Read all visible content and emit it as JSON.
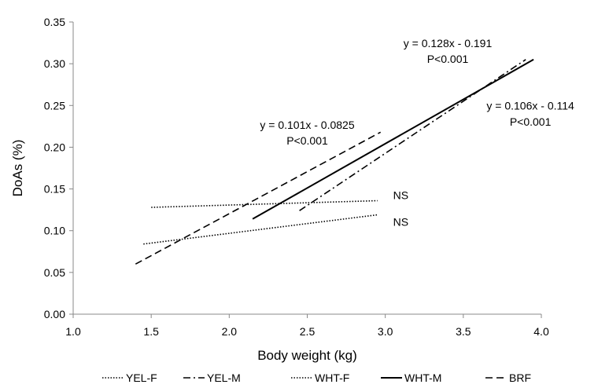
{
  "chart_data": {
    "type": "line",
    "xlabel": "Body weight (kg)",
    "ylabel": "DoAs (%)",
    "xlim": [
      1.0,
      4.0
    ],
    "ylim": [
      0.0,
      0.35
    ],
    "x_ticks": [
      "1.0",
      "1.5",
      "2.0",
      "2.5",
      "3.0",
      "3.5",
      "4.0"
    ],
    "y_ticks": [
      "0.00",
      "0.05",
      "0.10",
      "0.15",
      "0.20",
      "0.25",
      "0.30",
      "0.35"
    ],
    "grid": false,
    "legend_position": "bottom",
    "series": [
      {
        "name": "YEL-F",
        "style": "dotted",
        "x": [
          1.5,
          2.95
        ],
        "y": [
          0.128,
          0.136
        ]
      },
      {
        "name": "YEL-M",
        "style": "dash-dot",
        "x": [
          2.45,
          3.9
        ],
        "y": [
          0.124,
          0.305
        ]
      },
      {
        "name": "WHT-F",
        "style": "dotted",
        "x": [
          1.45,
          2.95
        ],
        "y": [
          0.084,
          0.119
        ]
      },
      {
        "name": "WHT-M",
        "style": "solid",
        "x": [
          2.15,
          3.95
        ],
        "y": [
          0.114,
          0.305
        ]
      },
      {
        "name": "BRF",
        "style": "dashed",
        "x": [
          1.4,
          2.97
        ],
        "y": [
          0.06,
          0.218
        ]
      }
    ],
    "annotations": [
      {
        "text": "y = 0.128x  - 0.191",
        "x": 3.4,
        "y": 0.32
      },
      {
        "text": "P<0.001",
        "x": 3.4,
        "y": 0.301
      },
      {
        "text": "y = 0.106x  - 0.114",
        "x": 3.93,
        "y": 0.245
      },
      {
        "text": "P<0.001",
        "x": 3.93,
        "y": 0.226
      },
      {
        "text": "y = 0.101x  - 0.0825",
        "x": 2.5,
        "y": 0.222
      },
      {
        "text": "P<0.001",
        "x": 2.5,
        "y": 0.203
      },
      {
        "text": "NS",
        "x": 3.05,
        "y": 0.138
      },
      {
        "text": "NS",
        "x": 3.05,
        "y": 0.106
      }
    ]
  },
  "colors": {
    "line": "#000000",
    "background": "#ffffff"
  }
}
